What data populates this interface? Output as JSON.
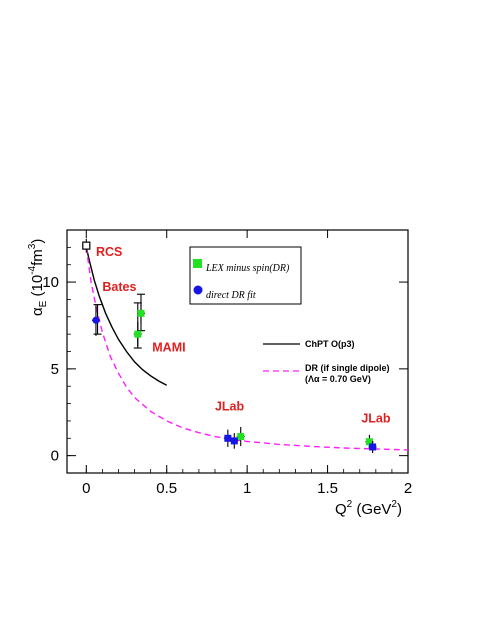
{
  "chart_data": {
    "type": "scatter",
    "xlabel": "Q² (GeV²)",
    "ylabel": "αE (10⁻⁴fm³)",
    "xlim": [
      -0.12,
      2.0
    ],
    "ylim": [
      -1.0,
      13.0
    ],
    "xticks": [
      0,
      0.5,
      1,
      1.5,
      2
    ],
    "xtick_labels": [
      "0",
      "0.5",
      "1",
      "1.5",
      "2"
    ],
    "yticks": [
      0,
      5,
      10
    ],
    "ytick_labels": [
      "0",
      "5",
      "10"
    ],
    "legend": {
      "placement": "top-center",
      "items": [
        {
          "label": "LEX minus spin(DR)",
          "color": "#22e022",
          "marker": "square"
        },
        {
          "label": "direct DR fit",
          "color": "#1515e6",
          "marker": "circle"
        }
      ]
    },
    "series": [
      {
        "name": "LEX minus spin(DR)",
        "marker": "square",
        "color": "#22e022",
        "points": [
          {
            "x": 0.32,
            "y": 7.0,
            "yerr": 0.7
          },
          {
            "x": 0.34,
            "y": 8.2,
            "yerr": 0.6
          },
          {
            "x": 0.96,
            "y": 1.1,
            "yerr": 0.55
          },
          {
            "x": 1.76,
            "y": 0.8,
            "yerr": 0.4
          }
        ]
      },
      {
        "name": "direct DR fit",
        "marker": "circle",
        "color": "#1515e6",
        "points": [
          {
            "x": 0.06,
            "y": 7.8,
            "yerr": 0.9
          }
        ]
      },
      {
        "name": "",
        "marker": "square",
        "color": "#1515e6",
        "points": [
          {
            "x": 0.88,
            "y": 1.0,
            "yerr": 0.5
          },
          {
            "x": 0.92,
            "y": 0.85,
            "yerr": 0.45
          },
          {
            "x": 1.78,
            "y": 0.5,
            "yerr": 0.35
          }
        ]
      },
      {
        "name": "",
        "marker": "open-square",
        "color": "#000000",
        "points": [
          {
            "x": 0.0,
            "y": 12.1,
            "yerr": 0.4
          }
        ]
      }
    ],
    "bare_errorbars": [
      {
        "x": 0.32,
        "ylo": 6.2,
        "yhi": 8.8
      },
      {
        "x": 0.34,
        "ylo": 7.2,
        "yhi": 9.3
      },
      {
        "x": 0.07,
        "ylo": 7.0,
        "yhi": 8.7
      }
    ],
    "curves": [
      {
        "name": "ChPT O(p3)",
        "style": "solid",
        "color": "#000000",
        "x": [
          0.0,
          0.02,
          0.05,
          0.08,
          0.12,
          0.16,
          0.2,
          0.25,
          0.3,
          0.35,
          0.4,
          0.45,
          0.5
        ],
        "y": [
          12.0,
          11.2,
          10.1,
          9.2,
          8.2,
          7.4,
          6.7,
          6.0,
          5.4,
          4.95,
          4.6,
          4.3,
          4.05
        ]
      },
      {
        "name": "DR (if single dipole)",
        "sublabel": "(Λα = 0.70 GeV)",
        "style": "dashed",
        "color": "#ff20ff",
        "x": [
          0.0,
          0.03,
          0.06,
          0.1,
          0.15,
          0.2,
          0.25,
          0.3,
          0.4,
          0.5,
          0.6,
          0.7,
          0.8,
          0.9,
          1.0,
          1.2,
          1.4,
          1.6,
          1.8,
          2.0
        ],
        "y": [
          12.0,
          10.0,
          8.6,
          7.1,
          5.7,
          4.75,
          3.95,
          3.35,
          2.55,
          2.0,
          1.6,
          1.32,
          1.1,
          0.95,
          0.82,
          0.65,
          0.53,
          0.44,
          0.38,
          0.33
        ]
      }
    ],
    "annotations": [
      {
        "text": "RCS",
        "x": 0.06,
        "y": 11.5
      },
      {
        "text": "Bates",
        "x": 0.1,
        "y": 9.5
      },
      {
        "text": "MAMI",
        "x": 0.41,
        "y": 6.0
      },
      {
        "text": "JLab",
        "x": 0.8,
        "y": 2.6
      },
      {
        "text": "JLab",
        "x": 1.71,
        "y": 1.9
      }
    ],
    "grid": false
  }
}
